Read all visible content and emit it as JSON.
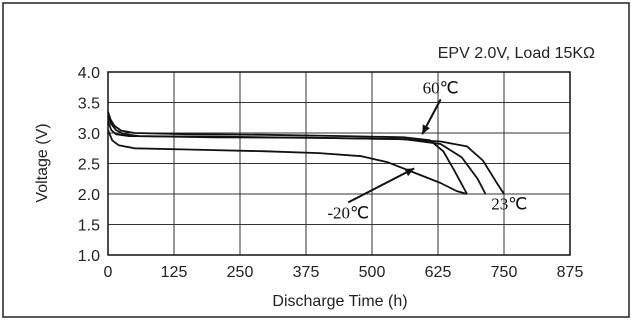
{
  "chart_data": {
    "type": "line",
    "title": "",
    "annotation": "EPV 2.0V, Load 15KΩ",
    "xlabel": "Discharge Time (h)",
    "ylabel": "Voltage (V)",
    "xlim": [
      0,
      875
    ],
    "ylim": [
      1.0,
      4.0
    ],
    "xticks": [
      0,
      125,
      250,
      375,
      500,
      625,
      750,
      875
    ],
    "yticks": [
      1.0,
      1.5,
      2.0,
      2.5,
      3.0,
      3.5,
      4.0
    ],
    "x_tick_labels": [
      "0",
      "125",
      "250",
      "375",
      "500",
      "625",
      "750",
      "875"
    ],
    "y_tick_labels": [
      "1.0",
      "1.5",
      "2.0",
      "2.5",
      "3.0",
      "3.5",
      "4.0"
    ],
    "grid": true,
    "line_color": "#111111",
    "series": [
      {
        "name": "60℃",
        "points": [
          [
            0,
            3.35
          ],
          [
            5,
            3.22
          ],
          [
            12,
            3.12
          ],
          [
            25,
            3.04
          ],
          [
            50,
            3.0
          ],
          [
            150,
            2.98
          ],
          [
            300,
            2.97
          ],
          [
            450,
            2.95
          ],
          [
            560,
            2.93
          ],
          [
            610,
            2.88
          ],
          [
            635,
            2.7
          ],
          [
            655,
            2.4
          ],
          [
            680,
            2.0
          ]
        ]
      },
      {
        "name": "23℃",
        "points": [
          [
            0,
            3.28
          ],
          [
            6,
            3.15
          ],
          [
            15,
            3.05
          ],
          [
            30,
            2.98
          ],
          [
            60,
            2.95
          ],
          [
            200,
            2.93
          ],
          [
            400,
            2.92
          ],
          [
            550,
            2.9
          ],
          [
            630,
            2.86
          ],
          [
            680,
            2.78
          ],
          [
            710,
            2.55
          ],
          [
            735,
            2.2
          ],
          [
            750,
            2.0
          ]
        ]
      },
      {
        "name": "-20℃",
        "points": [
          [
            0,
            3.05
          ],
          [
            8,
            2.88
          ],
          [
            20,
            2.8
          ],
          [
            50,
            2.75
          ],
          [
            150,
            2.73
          ],
          [
            300,
            2.7
          ],
          [
            400,
            2.67
          ],
          [
            480,
            2.62
          ],
          [
            530,
            2.52
          ],
          [
            580,
            2.35
          ],
          [
            630,
            2.18
          ],
          [
            660,
            2.05
          ],
          [
            680,
            2.0
          ]
        ]
      },
      {
        "name": "",
        "points": [
          [
            0,
            3.2
          ],
          [
            6,
            3.05
          ],
          [
            15,
            2.98
          ],
          [
            40,
            2.95
          ],
          [
            200,
            2.94
          ],
          [
            400,
            2.92
          ],
          [
            560,
            2.9
          ],
          [
            630,
            2.82
          ],
          [
            670,
            2.6
          ],
          [
            700,
            2.25
          ],
          [
            715,
            2.0
          ]
        ]
      }
    ],
    "labels": [
      {
        "text": "60℃",
        "x": 630,
        "y": 3.65,
        "arrow_to": [
          595,
          2.98
        ]
      },
      {
        "text": "23℃",
        "x": 760,
        "y": 1.75
      },
      {
        "text": "-20℃",
        "x": 455,
        "y": 1.6,
        "arrow_to": [
          580,
          2.42
        ]
      }
    ]
  }
}
